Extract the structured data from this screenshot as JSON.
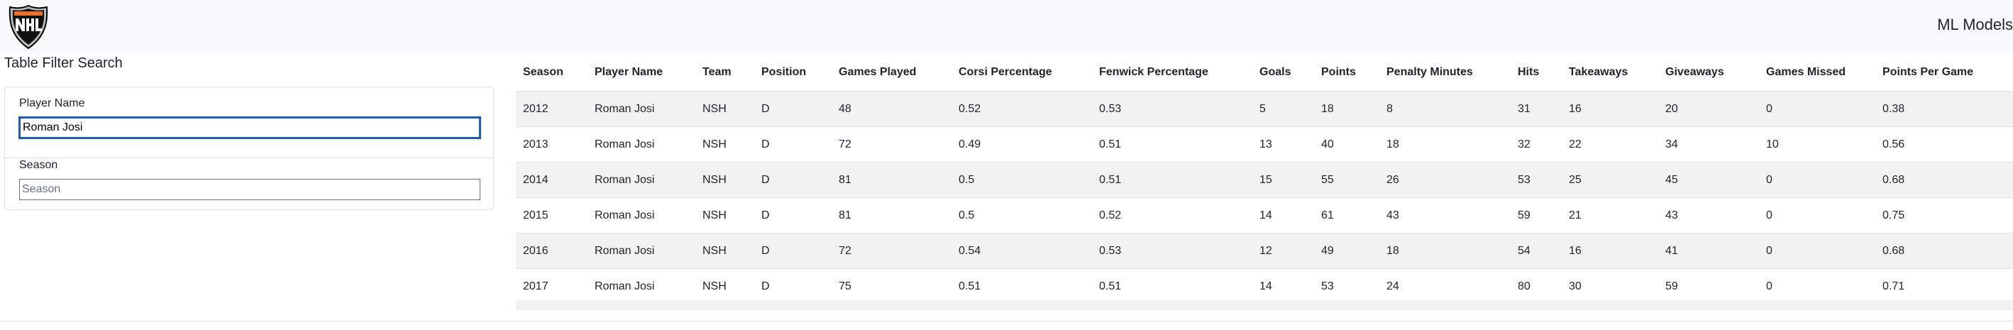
{
  "navbar": {
    "logo_icon": "nhl-shield-logo",
    "link_label": "ML Models"
  },
  "filter": {
    "title": "Table Filter Search",
    "player_name_label": "Player Name",
    "player_name_value": "Roman Josi",
    "season_label": "Season",
    "season_placeholder": "Season"
  },
  "table": {
    "columns": [
      "Season",
      "Player Name",
      "Team",
      "Position",
      "Games Played",
      "Corsi Percentage",
      "Fenwick Percentage",
      "Goals",
      "Points",
      "Penalty Minutes",
      "Hits",
      "Takeaways",
      "Giveaways",
      "Games Missed",
      "Points Per Game"
    ],
    "rows": [
      [
        "2012",
        "Roman Josi",
        "NSH",
        "D",
        "48",
        "0.52",
        "0.53",
        "5",
        "18",
        "8",
        "31",
        "16",
        "20",
        "0",
        "0.38"
      ],
      [
        "2013",
        "Roman Josi",
        "NSH",
        "D",
        "72",
        "0.49",
        "0.51",
        "13",
        "40",
        "18",
        "32",
        "22",
        "34",
        "10",
        "0.56"
      ],
      [
        "2014",
        "Roman Josi",
        "NSH",
        "D",
        "81",
        "0.5",
        "0.51",
        "15",
        "55",
        "26",
        "53",
        "25",
        "45",
        "0",
        "0.68"
      ],
      [
        "2015",
        "Roman Josi",
        "NSH",
        "D",
        "81",
        "0.5",
        "0.52",
        "14",
        "61",
        "43",
        "59",
        "21",
        "43",
        "0",
        "0.75"
      ],
      [
        "2016",
        "Roman Josi",
        "NSH",
        "D",
        "72",
        "0.54",
        "0.53",
        "12",
        "49",
        "18",
        "54",
        "16",
        "41",
        "0",
        "0.68"
      ],
      [
        "2017",
        "Roman Josi",
        "NSH",
        "D",
        "75",
        "0.51",
        "0.51",
        "14",
        "53",
        "24",
        "80",
        "30",
        "59",
        "0",
        "0.71"
      ]
    ]
  }
}
